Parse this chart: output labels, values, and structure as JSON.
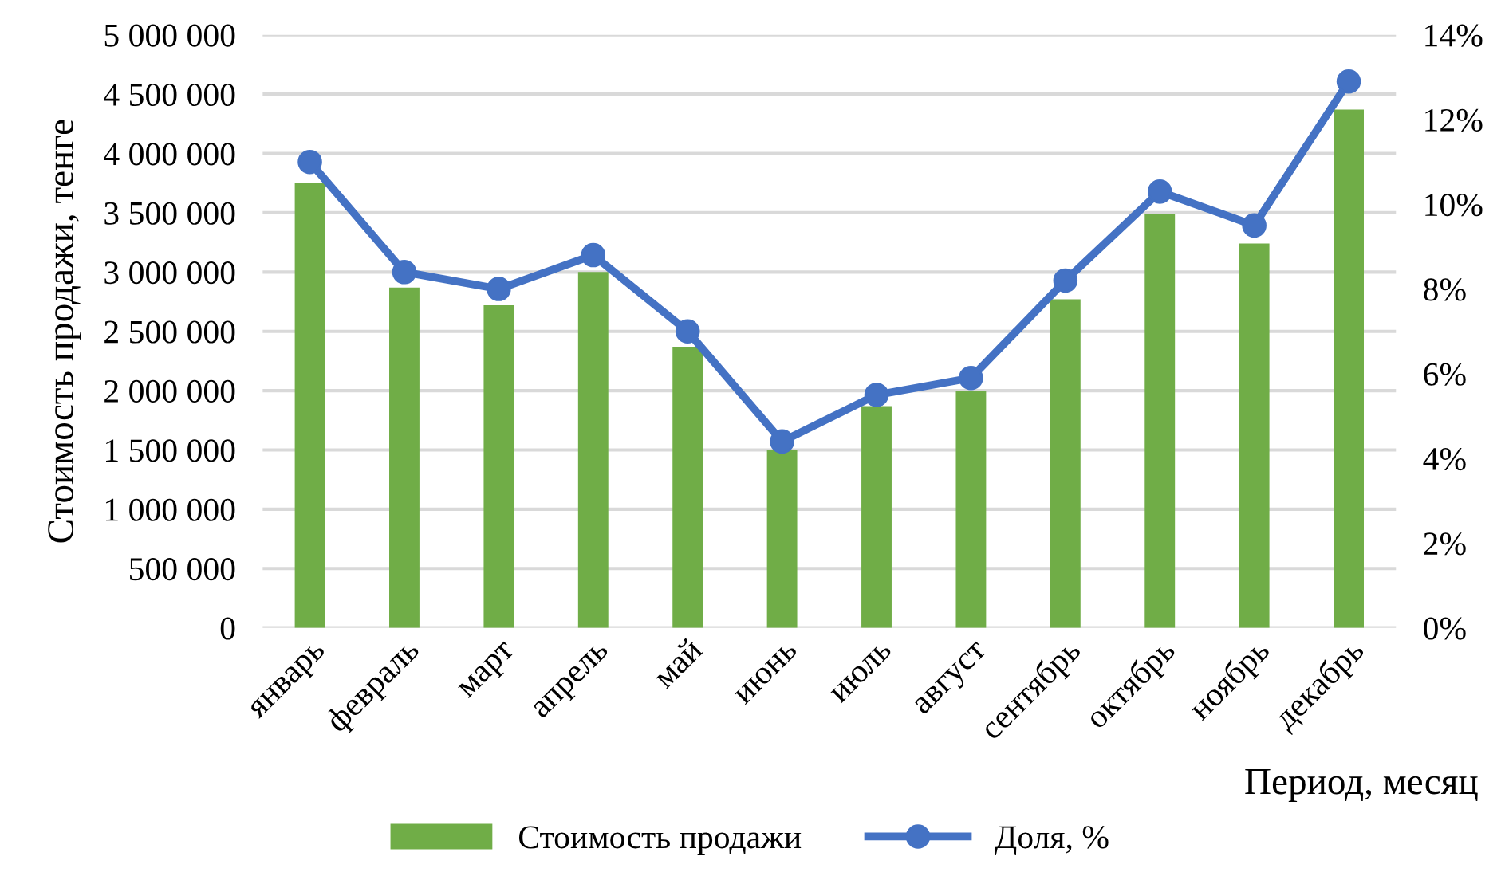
{
  "chart_data": {
    "type": "bar",
    "categories": [
      "январь",
      "февраль",
      "март",
      "апрель",
      "май",
      "июнь",
      "июль",
      "август",
      "сентябрь",
      "октябрь",
      "ноябрь",
      "декабрь"
    ],
    "series": [
      {
        "name": "Стоимость продажи",
        "color": "#70ad47",
        "values": [
          3750000,
          2870000,
          2720000,
          3000000,
          2370000,
          1500000,
          1870000,
          2000000,
          2770000,
          3490000,
          3240000,
          4370000
        ]
      },
      {
        "name": "Доля, %",
        "type": "line",
        "axis": "y2",
        "color": "#4472c4",
        "values": [
          11.0,
          8.4,
          8.0,
          8.8,
          7.0,
          4.4,
          5.5,
          5.9,
          8.2,
          10.3,
          9.5,
          12.9
        ]
      }
    ],
    "xlabel": "Период, месяц",
    "ylabel": "Стоимость продажи, тенге",
    "ylim": [
      0,
      5000000
    ],
    "yticks": [
      {
        "value": 0,
        "label": "0"
      },
      {
        "value": 500000,
        "label": "500 000"
      },
      {
        "value": 1000000,
        "label": "1 000 000"
      },
      {
        "value": 1500000,
        "label": "1 500 000"
      },
      {
        "value": 2000000,
        "label": "2 000 000"
      },
      {
        "value": 2500000,
        "label": "2 500 000"
      },
      {
        "value": 3000000,
        "label": "3 000 000"
      },
      {
        "value": 3500000,
        "label": "3 500 000"
      },
      {
        "value": 4000000,
        "label": "4 000 000"
      },
      {
        "value": 4500000,
        "label": "4 500 000"
      },
      {
        "value": 5000000,
        "label": "5 000 000"
      }
    ],
    "y2lim": [
      0,
      14
    ],
    "y2ticks": [
      {
        "value": 0,
        "label": "0%"
      },
      {
        "value": 2,
        "label": "2%"
      },
      {
        "value": 4,
        "label": "4%"
      },
      {
        "value": 6,
        "label": "6%"
      },
      {
        "value": 8,
        "label": "8%"
      },
      {
        "value": 10,
        "label": "10%"
      },
      {
        "value": 12,
        "label": "12%"
      },
      {
        "value": 14,
        "label": "14%"
      }
    ],
    "grid": "y",
    "legend": "bottom",
    "marker": "circle",
    "line_style": "solid"
  }
}
